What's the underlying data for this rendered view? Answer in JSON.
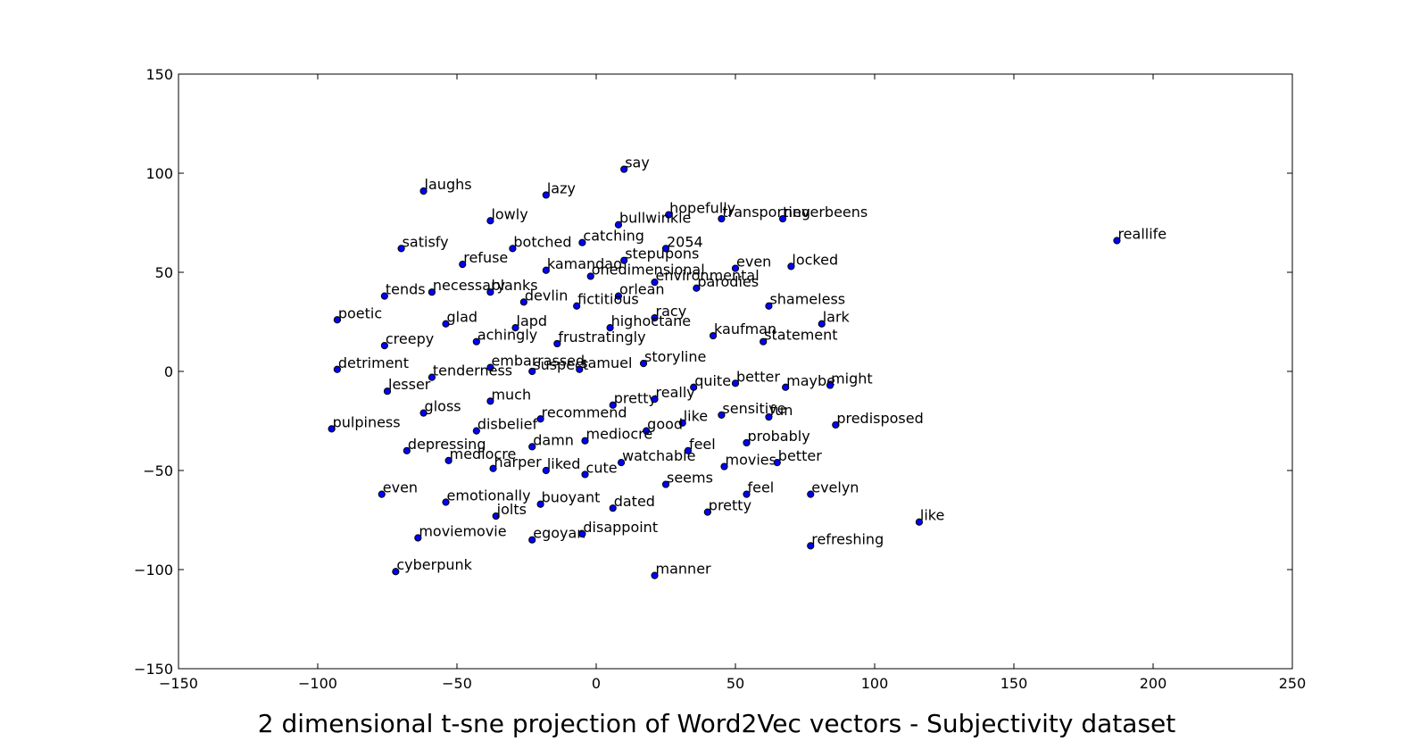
{
  "chart_data": {
    "type": "scatter",
    "title": "2 dimensional t-sne projection of Word2Vec vectors - Subjectivity dataset",
    "xlabel": "",
    "ylabel": "",
    "xlim": [
      -150,
      250
    ],
    "ylim": [
      -150,
      150
    ],
    "xticks": [
      -150,
      -100,
      -50,
      0,
      50,
      100,
      150,
      200,
      250
    ],
    "yticks": [
      -150,
      -100,
      -50,
      0,
      50,
      100,
      150
    ],
    "xtick_labels": [
      "−150",
      "−100",
      "−50",
      "0",
      "50",
      "100",
      "150",
      "200",
      "250"
    ],
    "ytick_labels": [
      "−150",
      "−100",
      "−50",
      "0",
      "50",
      "100",
      "150"
    ],
    "grid": false,
    "marker_color": "#0000ff",
    "marker_edge": "#000000",
    "points": [
      {
        "label": "say",
        "x": 10,
        "y": 102
      },
      {
        "label": "laughs",
        "x": -62,
        "y": 91
      },
      {
        "label": "lazy",
        "x": -18,
        "y": 89
      },
      {
        "label": "hopefully",
        "x": 26,
        "y": 79
      },
      {
        "label": "transporting",
        "x": 45,
        "y": 77
      },
      {
        "label": "neverbeens",
        "x": 67,
        "y": 77
      },
      {
        "label": "reallife",
        "x": 187,
        "y": 66
      },
      {
        "label": "lowly",
        "x": -38,
        "y": 76
      },
      {
        "label": "bullwinkle",
        "x": 8,
        "y": 74
      },
      {
        "label": "satisfy",
        "x": -70,
        "y": 62
      },
      {
        "label": "botched",
        "x": -30,
        "y": 62
      },
      {
        "label": "catching",
        "x": -5,
        "y": 65
      },
      {
        "label": "2054",
        "x": 25,
        "y": 62
      },
      {
        "label": "refuse",
        "x": -48,
        "y": 54
      },
      {
        "label": "kamandao",
        "x": -18,
        "y": 51
      },
      {
        "label": "stepupons",
        "x": 10,
        "y": 56
      },
      {
        "label": "even",
        "x": 50,
        "y": 52
      },
      {
        "label": "locked",
        "x": 70,
        "y": 53
      },
      {
        "label": "onedimensional",
        "x": -2,
        "y": 48
      },
      {
        "label": "environmental",
        "x": 21,
        "y": 45
      },
      {
        "label": "necessary",
        "x": -59,
        "y": 40
      },
      {
        "label": "blanks",
        "x": -38,
        "y": 40
      },
      {
        "label": "tends",
        "x": -76,
        "y": 38
      },
      {
        "label": "parodies",
        "x": 36,
        "y": 42
      },
      {
        "label": "orlean",
        "x": 8,
        "y": 38
      },
      {
        "label": "devlin",
        "x": -26,
        "y": 35
      },
      {
        "label": "fictitious",
        "x": -7,
        "y": 33
      },
      {
        "label": "shameless",
        "x": 62,
        "y": 33
      },
      {
        "label": "poetic",
        "x": -93,
        "y": 26
      },
      {
        "label": "glad",
        "x": -54,
        "y": 24
      },
      {
        "label": "lapd",
        "x": -29,
        "y": 22
      },
      {
        "label": "racy",
        "x": 21,
        "y": 27
      },
      {
        "label": "highoctane",
        "x": 5,
        "y": 22
      },
      {
        "label": "lark",
        "x": 81,
        "y": 24
      },
      {
        "label": "kaufman",
        "x": 42,
        "y": 18
      },
      {
        "label": "statement",
        "x": 60,
        "y": 15
      },
      {
        "label": "creepy",
        "x": -76,
        "y": 13
      },
      {
        "label": "achingly",
        "x": -43,
        "y": 15
      },
      {
        "label": "frustratingly",
        "x": -14,
        "y": 14
      },
      {
        "label": "storyline",
        "x": 17,
        "y": 4
      },
      {
        "label": "detriment",
        "x": -93,
        "y": 1
      },
      {
        "label": "embarrassed",
        "x": -38,
        "y": 2
      },
      {
        "label": "suspect",
        "x": -23,
        "y": 0
      },
      {
        "label": "samuel",
        "x": -6,
        "y": 1
      },
      {
        "label": "tenderness",
        "x": -59,
        "y": -3
      },
      {
        "label": "quite",
        "x": 35,
        "y": -8
      },
      {
        "label": "better",
        "x": 50,
        "y": -6
      },
      {
        "label": "maybe",
        "x": 68,
        "y": -8
      },
      {
        "label": "might",
        "x": 84,
        "y": -7
      },
      {
        "label": "lesser",
        "x": -75,
        "y": -10
      },
      {
        "label": "much",
        "x": -38,
        "y": -15
      },
      {
        "label": "pretty",
        "x": 6,
        "y": -17
      },
      {
        "label": "really",
        "x": 21,
        "y": -14
      },
      {
        "label": "gloss",
        "x": -62,
        "y": -21
      },
      {
        "label": "recommend",
        "x": -20,
        "y": -24
      },
      {
        "label": "sensitive",
        "x": 45,
        "y": -22
      },
      {
        "label": "fun",
        "x": 62,
        "y": -23
      },
      {
        "label": "predisposed",
        "x": 86,
        "y": -27
      },
      {
        "label": "pulpiness",
        "x": -95,
        "y": -29
      },
      {
        "label": "disbelief",
        "x": -43,
        "y": -30
      },
      {
        "label": "like",
        "x": 31,
        "y": -26
      },
      {
        "label": "good",
        "x": 18,
        "y": -30
      },
      {
        "label": "mediocre",
        "x": -4,
        "y": -35
      },
      {
        "label": "probably",
        "x": 54,
        "y": -36
      },
      {
        "label": "damn",
        "x": -23,
        "y": -38
      },
      {
        "label": "depressing",
        "x": -68,
        "y": -40
      },
      {
        "label": "feel",
        "x": 33,
        "y": -40
      },
      {
        "label": "mediocre",
        "x": -53,
        "y": -45
      },
      {
        "label": "harper",
        "x": -37,
        "y": -49
      },
      {
        "label": "liked",
        "x": -18,
        "y": -50
      },
      {
        "label": "cute",
        "x": -4,
        "y": -52
      },
      {
        "label": "watchable",
        "x": 9,
        "y": -46
      },
      {
        "label": "movies",
        "x": 46,
        "y": -48
      },
      {
        "label": "better",
        "x": 65,
        "y": -46
      },
      {
        "label": "seems",
        "x": 25,
        "y": -57
      },
      {
        "label": "even",
        "x": -77,
        "y": -62
      },
      {
        "label": "feel",
        "x": 54,
        "y": -62
      },
      {
        "label": "evelyn",
        "x": 77,
        "y": -62
      },
      {
        "label": "emotionally",
        "x": -54,
        "y": -66
      },
      {
        "label": "buoyant",
        "x": -20,
        "y": -67
      },
      {
        "label": "dated",
        "x": 6,
        "y": -69
      },
      {
        "label": "jolts",
        "x": -36,
        "y": -73
      },
      {
        "label": "pretty",
        "x": 40,
        "y": -71
      },
      {
        "label": "like",
        "x": 116,
        "y": -76
      },
      {
        "label": "moviemovie",
        "x": -64,
        "y": -84
      },
      {
        "label": "egoyan",
        "x": -23,
        "y": -85
      },
      {
        "label": "disappoint",
        "x": -5,
        "y": -82
      },
      {
        "label": "refreshing",
        "x": 77,
        "y": -88
      },
      {
        "label": "cyberpunk",
        "x": -72,
        "y": -101
      },
      {
        "label": "manner",
        "x": 21,
        "y": -103
      }
    ]
  }
}
